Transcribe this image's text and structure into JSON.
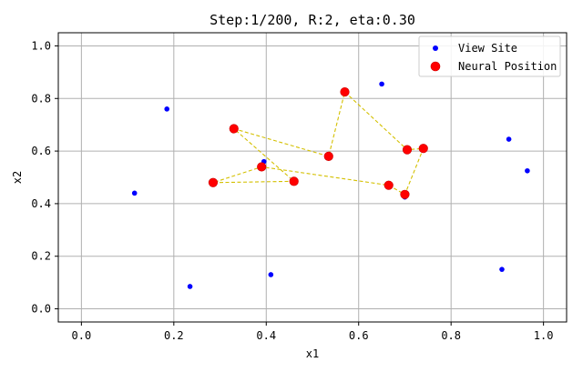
{
  "chart_data": {
    "type": "scatter",
    "title": "Step:1/200, R:2, eta:0.30",
    "xlabel": "x1",
    "ylabel": "x2",
    "xlim": [
      -0.05,
      1.05
    ],
    "ylim": [
      -0.05,
      1.05
    ],
    "xticks": [
      0.0,
      0.2,
      0.4,
      0.6,
      0.8,
      1.0
    ],
    "yticks": [
      0.0,
      0.2,
      0.4,
      0.6,
      0.8,
      1.0
    ],
    "xtick_labels": [
      "0.0",
      "0.2",
      "0.4",
      "0.6",
      "0.8",
      "1.0"
    ],
    "ytick_labels": [
      "0.0",
      "0.2",
      "0.4",
      "0.6",
      "0.8",
      "1.0"
    ],
    "grid": true,
    "legend_position": "top-right",
    "series": [
      {
        "name": "View Site",
        "kind": "points",
        "color": "#0000ff",
        "points": [
          [
            0.115,
            0.44
          ],
          [
            0.185,
            0.76
          ],
          [
            0.235,
            0.085
          ],
          [
            0.41,
            0.13
          ],
          [
            0.395,
            0.56
          ],
          [
            0.65,
            0.855
          ],
          [
            0.7,
            0.425
          ],
          [
            0.925,
            0.645
          ],
          [
            0.965,
            0.525
          ],
          [
            0.91,
            0.15
          ]
        ]
      },
      {
        "name": "Neural Position",
        "kind": "path",
        "color": "#ff0000",
        "edge_color": "#cc0000",
        "line_color": "#d4c000",
        "points": [
          [
            0.665,
            0.47
          ],
          [
            0.7,
            0.435
          ],
          [
            0.74,
            0.61
          ],
          [
            0.705,
            0.605
          ],
          [
            0.57,
            0.825
          ],
          [
            0.535,
            0.58
          ],
          [
            0.33,
            0.685
          ],
          [
            0.46,
            0.485
          ],
          [
            0.285,
            0.48
          ],
          [
            0.39,
            0.54
          ]
        ],
        "closed": true
      }
    ]
  }
}
